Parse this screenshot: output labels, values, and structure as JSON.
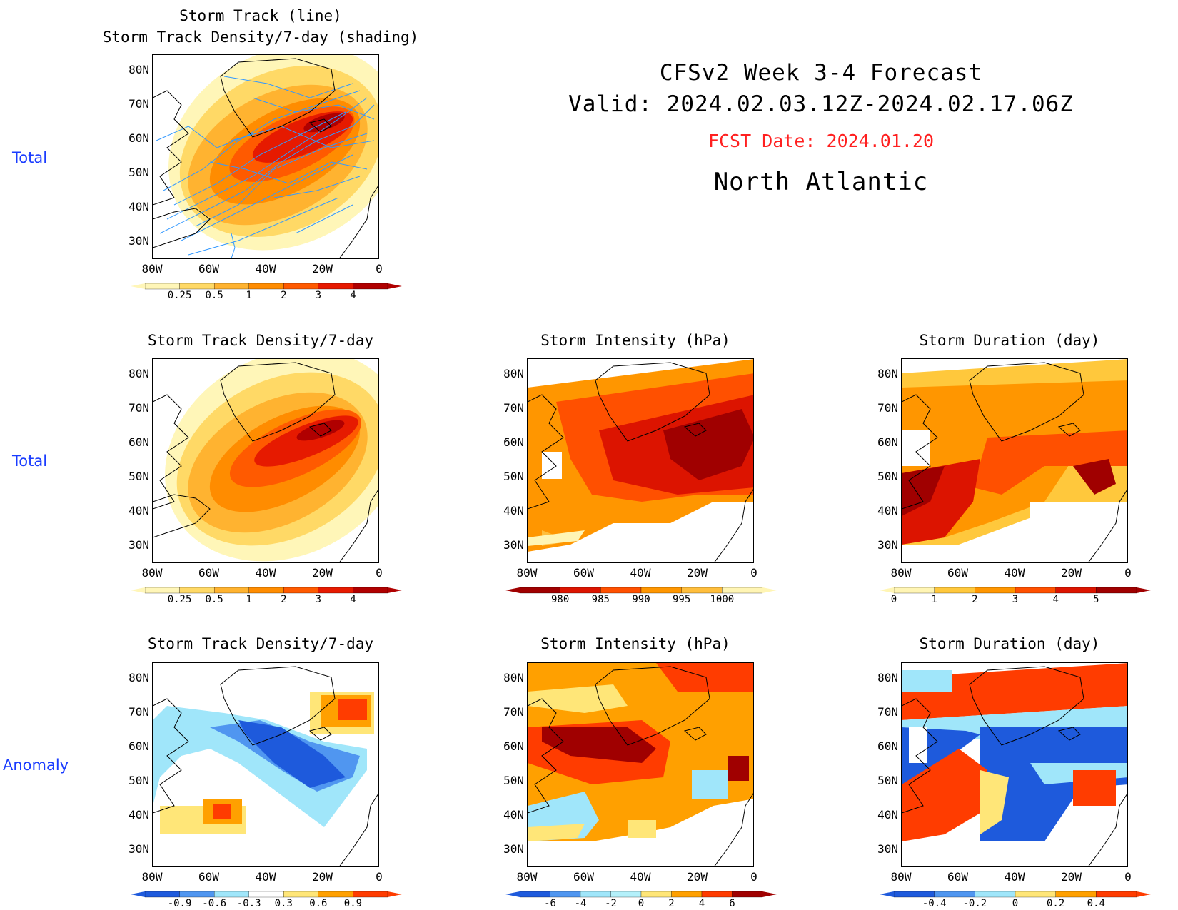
{
  "header": {
    "line1": "CFSv2 Week 3-4 Forecast",
    "line2": "Valid: 2024.02.03.12Z-2024.02.17.06Z",
    "fcst_date": "FCST Date: 2024.01.20",
    "region": "North Atlantic"
  },
  "row_labels": [
    "Total",
    "Total",
    "Anomaly"
  ],
  "axes": {
    "lat_ticks": [
      "80N",
      "70N",
      "60N",
      "50N",
      "40N",
      "30N"
    ],
    "lon_ticks": [
      "80W",
      "60W",
      "40W",
      "20W",
      "0"
    ]
  },
  "panels": [
    {
      "id": "track-total",
      "title": [
        "Storm Track (line)",
        "Storm Track Density/7-day (shading)"
      ],
      "legend": "density"
    },
    {
      "id": "density-total",
      "title": [
        "Storm Track Density/7-day"
      ],
      "legend": "density"
    },
    {
      "id": "intensity-total",
      "title": [
        "Storm Intensity (hPa)"
      ],
      "legend": "intensity"
    },
    {
      "id": "duration-total",
      "title": [
        "Storm Duration (day)"
      ],
      "legend": "duration"
    },
    {
      "id": "density-anom",
      "title": [
        "Storm Track Density/7-day"
      ],
      "legend": "density_anom"
    },
    {
      "id": "intensity-anom",
      "title": [
        "Storm Intensity (hPa)"
      ],
      "legend": "intensity_anom"
    },
    {
      "id": "duration-anom",
      "title": [
        "Storm Duration (day)"
      ],
      "legend": "duration_anom"
    }
  ],
  "legends": {
    "density": {
      "labels": [
        "0.25",
        "0.5",
        "1",
        "2",
        "3",
        "4"
      ],
      "colors": [
        "#fff6b8",
        "#ffd966",
        "#ffb330",
        "#ff8c00",
        "#ff5a00",
        "#e61a00",
        "#b00000"
      ]
    },
    "intensity": {
      "labels": [
        "980",
        "985",
        "990",
        "995",
        "1000"
      ],
      "colors": [
        "#a00000",
        "#dc1400",
        "#ff5000",
        "#ff9600",
        "#ffbe3c",
        "#fff5b4"
      ]
    },
    "duration": {
      "labels": [
        "0",
        "1",
        "2",
        "3",
        "4",
        "5"
      ],
      "colors": [
        "#fff5b4",
        "#ffc83c",
        "#ff9600",
        "#ff5000",
        "#dc1400",
        "#a00000"
      ]
    },
    "density_anom": {
      "labels": [
        "-0.9",
        "-0.6",
        "-0.3",
        "0.3",
        "0.6",
        "0.9"
      ],
      "colors": [
        "#1e5adc",
        "#5096f0",
        "#a0e6fa",
        "#ffffff",
        "#ffe678",
        "#ffa000",
        "#ff3c00"
      ]
    },
    "intensity_anom": {
      "labels": [
        "-6",
        "-4",
        "-2",
        "0",
        "2",
        "4",
        "6"
      ],
      "colors": [
        "#1e5adc",
        "#5096f0",
        "#a0e6fa",
        "#b4f0fa",
        "#ffe678",
        "#ffa000",
        "#ff3c00",
        "#a00000"
      ]
    },
    "duration_anom": {
      "labels": [
        "-0.4",
        "-0.2",
        "0",
        "0.2",
        "0.4"
      ],
      "colors": [
        "#1e5adc",
        "#5096f0",
        "#a0e6fa",
        "#ffe678",
        "#ffa000",
        "#ff3c00"
      ]
    }
  }
}
